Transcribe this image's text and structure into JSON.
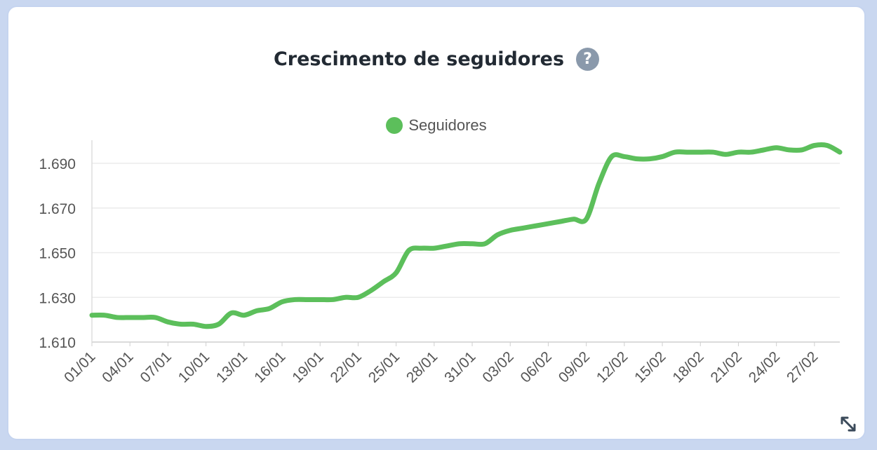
{
  "chart_data": {
    "type": "line",
    "title": "Crescimento de seguidores",
    "series": [
      {
        "name": "Seguidores",
        "color": "#5cbf5b",
        "x": [
          "01/01",
          "02/01",
          "03/01",
          "04/01",
          "05/01",
          "06/01",
          "07/01",
          "08/01",
          "09/01",
          "10/01",
          "11/01",
          "12/01",
          "13/01",
          "14/01",
          "15/01",
          "16/01",
          "17/01",
          "18/01",
          "19/01",
          "20/01",
          "21/01",
          "22/01",
          "23/01",
          "24/01",
          "25/01",
          "26/01",
          "27/01",
          "28/01",
          "29/01",
          "30/01",
          "31/01",
          "01/02",
          "02/02",
          "03/02",
          "04/02",
          "05/02",
          "06/02",
          "07/02",
          "08/02",
          "09/02",
          "10/02",
          "11/02",
          "12/02",
          "13/02",
          "14/02",
          "15/02",
          "16/02",
          "17/02",
          "18/02",
          "19/02",
          "20/02",
          "21/02",
          "22/02",
          "23/02",
          "24/02",
          "25/02",
          "26/02",
          "27/02",
          "28/02",
          "29/02"
        ],
        "values": [
          1622,
          1622,
          1621,
          1621,
          1621,
          1621,
          1619,
          1618,
          1618,
          1617,
          1618,
          1623,
          1622,
          1624,
          1625,
          1628,
          1629,
          1629,
          1629,
          1629,
          1630,
          1630,
          1633,
          1637,
          1641,
          1651,
          1652,
          1652,
          1653,
          1654,
          1654,
          1654,
          1658,
          1660,
          1661,
          1662,
          1663,
          1664,
          1665,
          1665,
          1681,
          1693,
          1693,
          1692,
          1692,
          1693,
          1695,
          1695,
          1695,
          1695,
          1694,
          1695,
          1695,
          1696,
          1697,
          1696,
          1696,
          1698,
          1698,
          1695
        ]
      }
    ],
    "x_tick_labels": [
      "01/01",
      "04/01",
      "07/01",
      "10/01",
      "13/01",
      "16/01",
      "19/01",
      "22/01",
      "25/01",
      "28/01",
      "31/01",
      "03/02",
      "06/02",
      "09/02",
      "12/02",
      "15/02",
      "18/02",
      "21/02",
      "24/02",
      "27/02"
    ],
    "y_tick_labels": [
      "1.610",
      "1.630",
      "1.650",
      "1.670",
      "1.690"
    ],
    "y_ticks": [
      1610,
      1630,
      1650,
      1670,
      1690
    ],
    "ylim": [
      1610,
      1700
    ],
    "grid": true,
    "legend_position": "top-center"
  },
  "ui": {
    "title": "Crescimento de seguidores",
    "help_icon_glyph": "?",
    "help_icon": "question-circle-icon",
    "resize_icon": "expand-diagonal-icon"
  }
}
